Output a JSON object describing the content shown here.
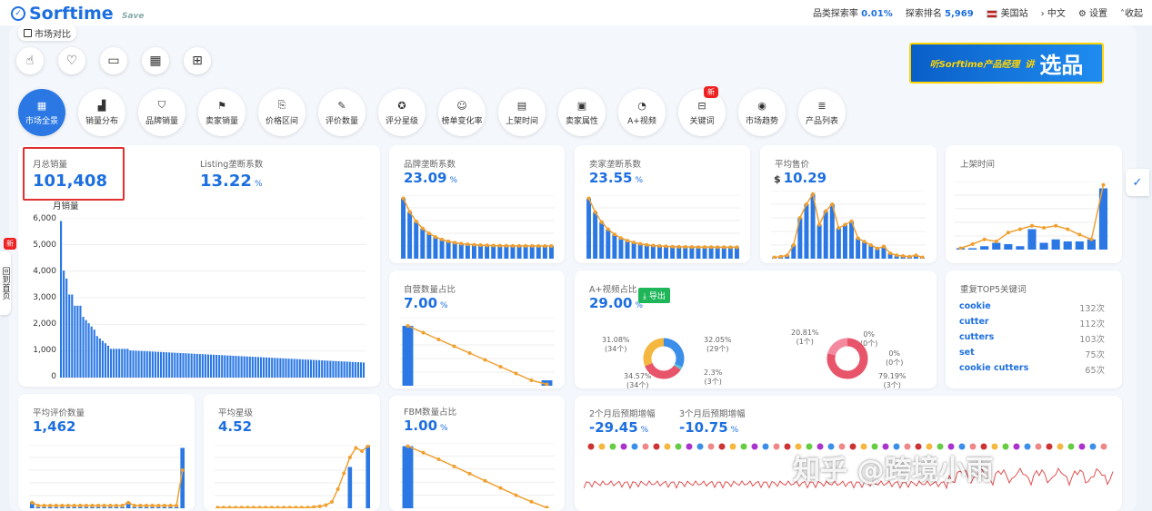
{
  "header": {
    "logo": "Sorftime",
    "save": "Save",
    "cat_rate_label": "品类探索率",
    "cat_rate": "0.01%",
    "rank_label": "探索排名",
    "rank": "5,969",
    "site": "美国站",
    "lang": "中文",
    "settings": "设置",
    "collapse": "收起"
  },
  "compare_label": "市场对比",
  "tools": [
    {
      "icon": "gesture-icon",
      "glyph": "☝"
    },
    {
      "icon": "heart-icon",
      "glyph": "♡"
    },
    {
      "icon": "folder-icon",
      "glyph": "▭"
    },
    {
      "icon": "grid-icon",
      "glyph": "▦"
    },
    {
      "icon": "gift-icon",
      "glyph": "⊞"
    }
  ],
  "banner": {
    "small": "听Sorftime产品经理",
    "big": "选品",
    "accent": "讲"
  },
  "nav": [
    {
      "label": "市场全景",
      "glyph": "▦",
      "active": true
    },
    {
      "label": "销量分布",
      "glyph": "▟"
    },
    {
      "label": "品牌销量",
      "glyph": "⛉"
    },
    {
      "label": "卖家销量",
      "glyph": "⚑"
    },
    {
      "label": "价格区间",
      "glyph": "⎘"
    },
    {
      "label": "评价数量",
      "glyph": "✎"
    },
    {
      "label": "评分星级",
      "glyph": "✪"
    },
    {
      "label": "榜单变化率",
      "glyph": "☺"
    },
    {
      "label": "上架时间",
      "glyph": "▤"
    },
    {
      "label": "卖家属性",
      "glyph": "▣"
    },
    {
      "label": "A+视频",
      "glyph": "◔"
    },
    {
      "label": "关键词",
      "glyph": "⊟",
      "badge": "新"
    },
    {
      "label": "市场趋势",
      "glyph": "◉"
    },
    {
      "label": "产品列表",
      "glyph": "≣"
    }
  ],
  "cards": {
    "monthly": {
      "label": "月总销量",
      "value": "101,408",
      "listing_label": "Listing垄断系数",
      "listing_value": "13.22",
      "unit": "%",
      "y_title": "月销量",
      "y_ticks": [
        "6,000",
        "5,000",
        "4,000",
        "3,000",
        "2,000",
        "1,000",
        "0"
      ]
    },
    "brand": {
      "label": "品牌垄断系数",
      "value": "23.09",
      "unit": "%"
    },
    "seller": {
      "label": "卖家垄断系数",
      "value": "23.55",
      "unit": "%"
    },
    "price": {
      "label": "平均售价",
      "value": "10.29",
      "currency": "$"
    },
    "launch": {
      "label": "上架时间"
    },
    "self_op": {
      "label": "自营数量占比",
      "value": "7.00",
      "unit": "%"
    },
    "aplus": {
      "label": "A+视频占比",
      "value": "29.00",
      "unit": "%",
      "export": "导出",
      "donut1": {
        "tl": "31.08%",
        "tl2": "(34个)",
        "tr": "32.05%",
        "tr2": "(29个)",
        "br": "2.3%",
        "br2": "(3个)",
        "bl": "34.57%",
        "bl2": "(34个)"
      },
      "donut2": {
        "tl": "20.81%",
        "tl2": "(1个)",
        "tr": "0%",
        "tr2": "(0个)",
        "mr": "0%",
        "mr2": "(0个)",
        "br": "79.19%",
        "br2": "(3个)"
      }
    },
    "keywords": {
      "label": "重复TOP5关键词",
      "items": [
        {
          "k": "cookie",
          "c": "132次"
        },
        {
          "k": "cutter",
          "c": "112次"
        },
        {
          "k": "cutters",
          "c": "103次"
        },
        {
          "k": "set",
          "c": "75次"
        },
        {
          "k": "cookie cutters",
          "c": "65次"
        }
      ]
    },
    "reviews": {
      "label": "平均评价数量",
      "value": "1,462"
    },
    "stars": {
      "label": "平均星级",
      "value": "4.52"
    },
    "fbm": {
      "label": "FBM数量占比",
      "value": "1.00",
      "unit": "%"
    },
    "forecast": {
      "label2": "2个月后预期增幅",
      "value2": "-29.45",
      "label3": "3个月后预期增幅",
      "value3": "-10.75",
      "unit": "%"
    }
  },
  "side": {
    "badge": "新",
    "tab": "回到首页"
  },
  "watermark": "知乎 @跨境小雨",
  "colors": {
    "accent": "#1d6fe0",
    "bar": "#2b78e4",
    "line": "#f0a030",
    "red": "#e03030"
  }
}
